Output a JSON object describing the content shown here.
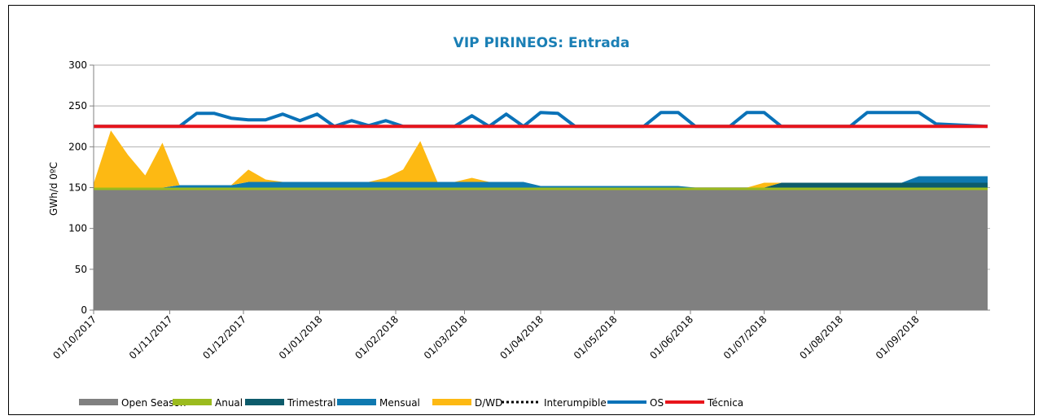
{
  "chart_data": {
    "type": "stacked-area-line",
    "title": "VIP PIRINEOS: Entrada",
    "y_label": "GWh/d  0ºC",
    "x": [
      "01/10/2017",
      "08/10/2017",
      "15/10/2017",
      "22/10/2017",
      "29/10/2017",
      "05/11/2017",
      "12/11/2017",
      "19/11/2017",
      "26/11/2017",
      "03/12/2017",
      "10/12/2017",
      "17/12/2017",
      "24/12/2017",
      "31/12/2017",
      "07/01/2018",
      "14/01/2018",
      "21/01/2018",
      "28/01/2018",
      "04/02/2018",
      "11/02/2018",
      "18/02/2018",
      "25/02/2018",
      "04/03/2018",
      "11/03/2018",
      "18/03/2018",
      "25/03/2018",
      "01/04/2018",
      "08/04/2018",
      "15/04/2018",
      "22/04/2018",
      "29/04/2018",
      "06/05/2018",
      "13/05/2018",
      "20/05/2018",
      "27/05/2018",
      "03/06/2018",
      "10/06/2018",
      "17/06/2018",
      "24/06/2018",
      "01/07/2018",
      "08/07/2018",
      "15/07/2018",
      "22/07/2018",
      "29/07/2018",
      "05/08/2018",
      "12/08/2018",
      "19/08/2018",
      "26/08/2018",
      "02/09/2018",
      "09/09/2018",
      "16/09/2018",
      "23/09/2018",
      "30/09/2018"
    ],
    "xlim": [
      "01/10/2017",
      "01/10/2018"
    ],
    "xticks": [
      "01/10/2017",
      "01/11/2017",
      "01/12/2017",
      "01/01/2018",
      "01/02/2018",
      "01/03/2018",
      "01/04/2018",
      "01/05/2018",
      "01/06/2018",
      "01/07/2018",
      "01/08/2018",
      "01/09/2018"
    ],
    "ylim": [
      0,
      300
    ],
    "yticks": [
      0,
      50,
      100,
      150,
      200,
      250,
      300
    ],
    "grid": true,
    "legend": "bottom",
    "series": [
      {
        "name": "Open Season",
        "kind": "area",
        "color": "#808080",
        "values": [
          147,
          147,
          147,
          147,
          147,
          147,
          147,
          147,
          147,
          147,
          147,
          147,
          147,
          147,
          147,
          147,
          147,
          147,
          147,
          147,
          147,
          147,
          147,
          147,
          147,
          147,
          147,
          147,
          147,
          147,
          147,
          147,
          147,
          147,
          147,
          147,
          147,
          147,
          147,
          147,
          147,
          147,
          147,
          147,
          147,
          147,
          147,
          147,
          147,
          147,
          147,
          147,
          147
        ]
      },
      {
        "name": "Anual",
        "kind": "area",
        "color": "#9bbb1e",
        "values": [
          3,
          3,
          3,
          3,
          3,
          3,
          3,
          3,
          3,
          3,
          3,
          3,
          3,
          3,
          3,
          3,
          3,
          3,
          3,
          3,
          3,
          3,
          3,
          3,
          3,
          3,
          3,
          3,
          3,
          3,
          3,
          3,
          3,
          3,
          3,
          3,
          3,
          3,
          3,
          3,
          3,
          3,
          3,
          3,
          3,
          3,
          3,
          3,
          3,
          3,
          3,
          3,
          3
        ]
      },
      {
        "name": "Trimestral",
        "kind": "area",
        "color": "#0d5b6b",
        "values": [
          0,
          0,
          0,
          0,
          0,
          0,
          0,
          0,
          0,
          0,
          0,
          0,
          0,
          0,
          0,
          0,
          0,
          0,
          0,
          0,
          0,
          0,
          0,
          0,
          0,
          0,
          0,
          0,
          0,
          0,
          0,
          0,
          0,
          0,
          0,
          0,
          0,
          0,
          0,
          0,
          6,
          6,
          6,
          6,
          6,
          6,
          6,
          6,
          6,
          6,
          6,
          6,
          6
        ]
      },
      {
        "name": "Mensual",
        "kind": "area",
        "color": "#0f79b0",
        "values": [
          0,
          0,
          0,
          0,
          0,
          3,
          3,
          3,
          3,
          7,
          7,
          7,
          7,
          7,
          7,
          7,
          7,
          7,
          7,
          7,
          7,
          7,
          7,
          7,
          7,
          7,
          2,
          2,
          2,
          2,
          2,
          2,
          2,
          2,
          2,
          0,
          0,
          0,
          0,
          0,
          0,
          0,
          0,
          0,
          0,
          0,
          0,
          0,
          8,
          8,
          8,
          8,
          8
        ]
      },
      {
        "name": "D/WD",
        "kind": "area",
        "color": "#fdb913",
        "values": [
          5,
          70,
          40,
          15,
          55,
          0,
          0,
          0,
          0,
          15,
          3,
          0,
          0,
          0,
          0,
          0,
          0,
          5,
          15,
          50,
          0,
          0,
          5,
          0,
          0,
          0,
          0,
          0,
          0,
          0,
          0,
          0,
          0,
          0,
          0,
          0,
          0,
          0,
          0,
          6,
          0,
          0,
          0,
          0,
          0,
          0,
          0,
          0,
          0,
          0,
          0,
          0,
          0
        ]
      },
      {
        "name": "Interumpible",
        "kind": "line",
        "style": "dotted",
        "color": "#000000",
        "values": [
          null,
          null,
          null,
          null,
          null,
          null,
          null,
          null,
          null,
          null,
          null,
          null,
          null,
          null,
          null,
          null,
          null,
          null,
          null,
          null,
          null,
          null,
          null,
          null,
          null,
          null,
          null,
          null,
          null,
          null,
          null,
          null,
          null,
          null,
          null,
          null,
          null,
          null,
          null,
          null,
          null,
          null,
          null,
          null,
          null,
          null,
          null,
          null,
          null,
          null,
          null,
          null,
          null
        ]
      },
      {
        "name": "OS",
        "kind": "line",
        "color": "#0a72b8",
        "values": [
          225,
          225,
          225,
          225,
          225,
          225,
          241,
          241,
          235,
          233,
          233,
          240,
          232,
          240,
          225,
          232,
          226,
          232,
          225,
          225,
          225,
          225,
          238,
          225,
          240,
          225,
          242,
          241,
          225,
          225,
          225,
          225,
          225,
          242,
          242,
          225,
          225,
          225,
          242,
          242,
          225,
          225,
          225,
          225,
          225,
          242,
          242,
          242,
          242,
          228,
          227,
          226,
          225
        ]
      },
      {
        "name": "Técnica",
        "kind": "line",
        "color": "#e8141b",
        "values": [
          225,
          225,
          225,
          225,
          225,
          225,
          225,
          225,
          225,
          225,
          225,
          225,
          225,
          225,
          225,
          225,
          225,
          225,
          225,
          225,
          225,
          225,
          225,
          225,
          225,
          225,
          225,
          225,
          225,
          225,
          225,
          225,
          225,
          225,
          225,
          225,
          225,
          225,
          225,
          225,
          225,
          225,
          225,
          225,
          225,
          225,
          225,
          225,
          225,
          225,
          225,
          225,
          225
        ]
      }
    ]
  }
}
